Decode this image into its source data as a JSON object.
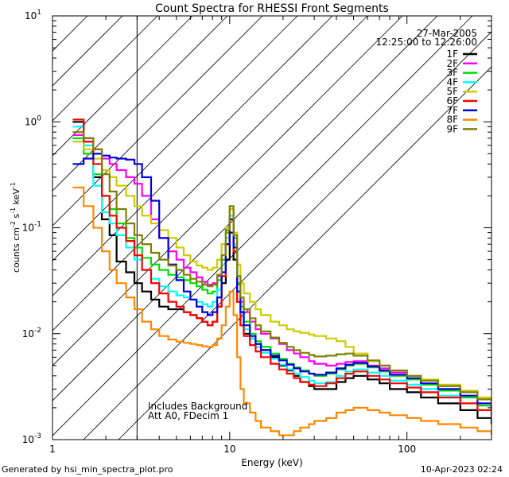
{
  "chart_data": {
    "type": "line",
    "title": "Count Spectra for RHESSI Front Segments",
    "xlabel": "Energy (keV)",
    "ylabel_parts": [
      "counts cm",
      "-2",
      " s",
      "-1",
      " keV",
      "-1"
    ],
    "xscale": "log",
    "yscale": "log",
    "xlim": [
      1,
      300
    ],
    "ylim": [
      0.001,
      10
    ],
    "x_ticks": [
      {
        "value": 1,
        "label": "1"
      },
      {
        "value": 10,
        "label": "10"
      },
      {
        "value": 100,
        "label": "100"
      }
    ],
    "y_ticks": [
      {
        "value": 0.001,
        "base": "10",
        "exp": "-3"
      },
      {
        "value": 0.01,
        "base": "10",
        "exp": "-2"
      },
      {
        "value": 0.1,
        "base": "10",
        "exp": "-1"
      },
      {
        "value": 1,
        "base": "10",
        "exp": "0"
      },
      {
        "value": 10,
        "base": "10",
        "exp": "1"
      }
    ],
    "hatched_region_x": [
      1,
      3
    ],
    "date": "27-Mar-2005",
    "time_range": "12:25:00 to 12:26:00",
    "annotations": [
      "Includes Background",
      "Att A0, FDecim 1"
    ],
    "series": [
      {
        "name": "1F",
        "color": "#000000",
        "x": [
          1.3,
          1.5,
          1.7,
          1.9,
          2.1,
          2.3,
          2.6,
          2.9,
          3.2,
          3.6,
          4,
          4.5,
          5,
          5.5,
          6,
          6.5,
          7,
          7.5,
          8,
          8.5,
          9,
          9.5,
          10,
          10.5,
          11,
          11.5,
          12,
          13,
          14,
          15,
          17,
          19,
          21,
          23,
          25,
          28,
          30,
          35,
          40,
          45,
          50,
          60,
          70,
          80,
          100,
          120,
          150,
          200,
          250,
          300
        ],
        "y": [
          1.0,
          0.7,
          0.3,
          0.12,
          0.085,
          0.048,
          0.038,
          0.03,
          0.025,
          0.021,
          0.018,
          0.017,
          0.017,
          0.016,
          0.015,
          0.014,
          0.013,
          0.012,
          0.013,
          0.018,
          0.03,
          0.05,
          0.09,
          0.05,
          0.02,
          0.012,
          0.01,
          0.009,
          0.008,
          0.007,
          0.006,
          0.005,
          0.0045,
          0.004,
          0.0035,
          0.0032,
          0.003,
          0.003,
          0.0035,
          0.0038,
          0.004,
          0.0037,
          0.0034,
          0.003,
          0.0028,
          0.0025,
          0.0022,
          0.0019,
          0.0016,
          0.0014
        ]
      },
      {
        "name": "2F",
        "color": "#ff00ff",
        "x": [
          1.3,
          1.5,
          1.7,
          1.9,
          2.1,
          2.3,
          2.6,
          2.9,
          3.2,
          3.6,
          4,
          4.5,
          5,
          5.5,
          6,
          6.5,
          7,
          7.5,
          8,
          8.5,
          9,
          9.5,
          10,
          10.5,
          11,
          11.5,
          12,
          13,
          14,
          15,
          17,
          19,
          21,
          23,
          25,
          28,
          30,
          35,
          40,
          45,
          50,
          60,
          70,
          80,
          100,
          120,
          150,
          200,
          250,
          300
        ],
        "y": [
          0.75,
          0.65,
          0.55,
          0.45,
          0.4,
          0.35,
          0.3,
          0.26,
          0.2,
          0.12,
          0.08,
          0.06,
          0.05,
          0.042,
          0.038,
          0.034,
          0.031,
          0.029,
          0.03,
          0.035,
          0.05,
          0.08,
          0.12,
          0.07,
          0.03,
          0.02,
          0.016,
          0.013,
          0.011,
          0.01,
          0.009,
          0.008,
          0.007,
          0.0065,
          0.006,
          0.0055,
          0.0052,
          0.005,
          0.0052,
          0.0054,
          0.0055,
          0.005,
          0.0047,
          0.0043,
          0.004,
          0.0036,
          0.0032,
          0.0028,
          0.0024,
          0.002
        ]
      },
      {
        "name": "3F",
        "color": "#00dd00",
        "x": [
          1.3,
          1.5,
          1.7,
          1.9,
          2.1,
          2.3,
          2.6,
          2.9,
          3.2,
          3.6,
          4,
          4.5,
          5,
          5.5,
          6,
          6.5,
          7,
          7.5,
          8,
          8.5,
          9,
          9.5,
          10,
          10.5,
          11,
          11.5,
          12,
          13,
          14,
          15,
          17,
          19,
          21,
          23,
          25,
          28,
          30,
          35,
          40,
          45,
          50,
          60,
          70,
          80,
          100,
          120,
          150,
          200,
          250,
          300
        ],
        "y": [
          0.7,
          0.5,
          0.32,
          0.2,
          0.15,
          0.11,
          0.08,
          0.065,
          0.052,
          0.045,
          0.04,
          0.036,
          0.034,
          0.032,
          0.03,
          0.028,
          0.026,
          0.024,
          0.025,
          0.032,
          0.05,
          0.09,
          0.15,
          0.08,
          0.03,
          0.018,
          0.013,
          0.01,
          0.0085,
          0.0075,
          0.0065,
          0.0058,
          0.0052,
          0.0048,
          0.0045,
          0.0042,
          0.004,
          0.0042,
          0.0046,
          0.005,
          0.0052,
          0.0048,
          0.0044,
          0.004,
          0.0037,
          0.0033,
          0.0029,
          0.0025,
          0.0021,
          0.0018
        ]
      },
      {
        "name": "4F",
        "color": "#00ffff",
        "x": [
          1.3,
          1.5,
          1.7,
          1.9,
          2.1,
          2.3,
          2.6,
          2.9,
          3.2,
          3.6,
          4,
          4.5,
          5,
          5.5,
          6,
          6.5,
          7,
          7.5,
          8,
          8.5,
          9,
          9.5,
          10,
          10.5,
          11,
          11.5,
          12,
          13,
          14,
          15,
          17,
          19,
          21,
          23,
          25,
          28,
          30,
          35,
          40,
          45,
          50,
          60,
          70,
          80,
          100,
          120,
          150,
          200,
          250,
          300
        ],
        "y": [
          0.9,
          0.6,
          0.25,
          0.14,
          0.11,
          0.085,
          0.065,
          0.05,
          0.04,
          0.033,
          0.028,
          0.025,
          0.023,
          0.022,
          0.021,
          0.02,
          0.019,
          0.018,
          0.02,
          0.026,
          0.045,
          0.08,
          0.13,
          0.07,
          0.025,
          0.015,
          0.011,
          0.009,
          0.0075,
          0.0066,
          0.0058,
          0.0051,
          0.0046,
          0.0042,
          0.0039,
          0.0036,
          0.0034,
          0.0035,
          0.004,
          0.0044,
          0.0046,
          0.0043,
          0.004,
          0.0036,
          0.0033,
          0.003,
          0.0026,
          0.0022,
          0.0019,
          0.0016
        ]
      },
      {
        "name": "5F",
        "color": "#cccc00",
        "x": [
          1.3,
          1.5,
          1.7,
          1.9,
          2.1,
          2.3,
          2.6,
          2.9,
          3.2,
          3.6,
          4,
          4.5,
          5,
          5.5,
          6,
          6.5,
          7,
          7.5,
          8,
          8.5,
          9,
          9.5,
          10,
          10.5,
          11,
          11.5,
          12,
          13,
          14,
          15,
          17,
          19,
          21,
          23,
          25,
          28,
          30,
          35,
          40,
          45,
          50,
          60,
          70,
          80,
          100,
          120,
          150,
          200,
          250,
          300
        ],
        "y": [
          0.65,
          0.55,
          0.45,
          0.35,
          0.3,
          0.25,
          0.2,
          0.16,
          0.13,
          0.11,
          0.095,
          0.08,
          0.065,
          0.055,
          0.048,
          0.044,
          0.042,
          0.04,
          0.042,
          0.05,
          0.07,
          0.1,
          0.15,
          0.09,
          0.045,
          0.03,
          0.024,
          0.02,
          0.017,
          0.015,
          0.013,
          0.012,
          0.011,
          0.0105,
          0.0102,
          0.0098,
          0.0095,
          0.009,
          0.0085,
          0.0075,
          0.0065,
          0.0055,
          0.005,
          0.0045,
          0.004,
          0.0037,
          0.0033,
          0.0029,
          0.0025,
          0.0022
        ]
      },
      {
        "name": "6F",
        "color": "#ff0000",
        "x": [
          1.3,
          1.5,
          1.7,
          1.9,
          2.1,
          2.3,
          2.6,
          2.9,
          3.2,
          3.6,
          4,
          4.5,
          5,
          5.5,
          6,
          6.5,
          7,
          7.5,
          8,
          8.5,
          9,
          9.5,
          10,
          10.5,
          11,
          11.5,
          12,
          13,
          14,
          15,
          17,
          19,
          21,
          23,
          25,
          28,
          30,
          35,
          40,
          45,
          50,
          60,
          70,
          80,
          100,
          120,
          150,
          200,
          250,
          300
        ],
        "y": [
          1.05,
          0.65,
          0.4,
          0.2,
          0.13,
          0.1,
          0.075,
          0.055,
          0.04,
          0.03,
          0.024,
          0.02,
          0.018,
          0.016,
          0.015,
          0.014,
          0.013,
          0.012,
          0.013,
          0.018,
          0.035,
          0.07,
          0.12,
          0.06,
          0.02,
          0.012,
          0.0095,
          0.0078,
          0.0068,
          0.006,
          0.0052,
          0.0046,
          0.0042,
          0.0038,
          0.0035,
          0.0033,
          0.0032,
          0.0034,
          0.0038,
          0.0042,
          0.0044,
          0.004,
          0.0037,
          0.0034,
          0.0031,
          0.0028,
          0.0025,
          0.0022,
          0.0019,
          0.0016
        ]
      },
      {
        "name": "7F",
        "color": "#0000dd",
        "x": [
          1.3,
          1.5,
          1.7,
          1.9,
          2.1,
          2.3,
          2.6,
          2.9,
          3.2,
          3.6,
          4,
          4.5,
          5,
          5.5,
          6,
          6.5,
          7,
          7.5,
          8,
          8.5,
          9,
          9.5,
          10,
          10.5,
          11,
          11.5,
          12,
          13,
          14,
          15,
          17,
          19,
          21,
          23,
          25,
          28,
          30,
          35,
          40,
          45,
          50,
          60,
          70,
          80,
          100,
          120,
          150,
          200,
          250,
          300
        ],
        "y": [
          0.4,
          0.45,
          0.5,
          0.48,
          0.46,
          0.45,
          0.44,
          0.4,
          0.3,
          0.18,
          0.08,
          0.045,
          0.032,
          0.025,
          0.021,
          0.018,
          0.016,
          0.015,
          0.016,
          0.022,
          0.038,
          0.07,
          0.12,
          0.065,
          0.025,
          0.016,
          0.012,
          0.0095,
          0.008,
          0.007,
          0.0062,
          0.0056,
          0.0051,
          0.0047,
          0.0044,
          0.0042,
          0.0041,
          0.0043,
          0.0047,
          0.0051,
          0.0053,
          0.0049,
          0.0045,
          0.0041,
          0.0038,
          0.0034,
          0.003,
          0.0026,
          0.0022,
          0.0019
        ]
      },
      {
        "name": "8F",
        "color": "#ff8800",
        "x": [
          1.3,
          1.5,
          1.7,
          1.9,
          2.1,
          2.3,
          2.6,
          2.9,
          3.2,
          3.6,
          4,
          4.5,
          5,
          5.5,
          6,
          6.5,
          7,
          7.5,
          8,
          8.5,
          9,
          9.5,
          10,
          10.5,
          11,
          11.5,
          12,
          13,
          14,
          15,
          17,
          19,
          21,
          23,
          25,
          28,
          30,
          35,
          40,
          45,
          50,
          60,
          70,
          80,
          100,
          120,
          150,
          200,
          250,
          300
        ],
        "y": [
          0.24,
          0.16,
          0.1,
          0.06,
          0.04,
          0.03,
          0.022,
          0.017,
          0.013,
          0.011,
          0.0095,
          0.0088,
          0.0084,
          0.0082,
          0.008,
          0.0078,
          0.0076,
          0.0075,
          0.0078,
          0.009,
          0.012,
          0.018,
          0.025,
          0.015,
          0.006,
          0.003,
          0.0022,
          0.0018,
          0.0015,
          0.0013,
          0.0012,
          0.0011,
          0.0011,
          0.0012,
          0.0013,
          0.0014,
          0.0015,
          0.0016,
          0.0018,
          0.0019,
          0.002,
          0.0019,
          0.0018,
          0.0017,
          0.0016,
          0.0015,
          0.0014,
          0.0013,
          0.0012,
          0.0011
        ]
      },
      {
        "name": "9F",
        "color": "#808000",
        "x": [
          1.3,
          1.5,
          1.7,
          1.9,
          2.1,
          2.3,
          2.6,
          2.9,
          3.2,
          3.6,
          4,
          4.5,
          5,
          5.5,
          6,
          6.5,
          7,
          7.5,
          8,
          8.5,
          9,
          9.5,
          10,
          10.5,
          11,
          11.5,
          12,
          13,
          14,
          15,
          17,
          19,
          21,
          23,
          25,
          28,
          30,
          35,
          40,
          45,
          50,
          60,
          70,
          80,
          100,
          120,
          150,
          200,
          250,
          300
        ],
        "y": [
          0.8,
          0.7,
          0.55,
          0.32,
          0.22,
          0.15,
          0.11,
          0.085,
          0.07,
          0.058,
          0.05,
          0.044,
          0.04,
          0.036,
          0.033,
          0.031,
          0.029,
          0.028,
          0.029,
          0.036,
          0.055,
          0.095,
          0.16,
          0.085,
          0.035,
          0.022,
          0.017,
          0.014,
          0.012,
          0.0105,
          0.0092,
          0.0082,
          0.0075,
          0.007,
          0.0066,
          0.0063,
          0.0061,
          0.0062,
          0.0064,
          0.0065,
          0.0062,
          0.0056,
          0.005,
          0.0045,
          0.004,
          0.0036,
          0.0032,
          0.0028,
          0.0024,
          0.0021
        ]
      }
    ]
  },
  "footer": {
    "generator": "Generated by hsi_min_spectra_plot.pro",
    "timestamp": "10-Apr-2023 02:24"
  }
}
